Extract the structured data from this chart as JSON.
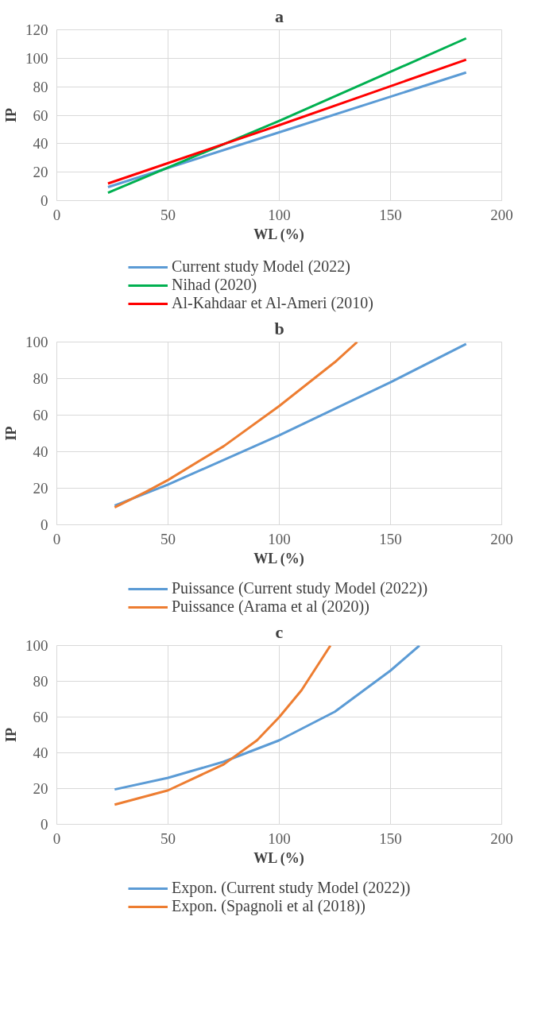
{
  "chart_data": [
    {
      "type": "line",
      "title": "a",
      "xlabel": "WL (%)",
      "ylabel": "IP",
      "xlim": [
        0,
        200
      ],
      "xticks": [
        0,
        50,
        100,
        150,
        200
      ],
      "ylim": [
        0,
        120
      ],
      "yticks": [
        0,
        20,
        40,
        60,
        80,
        100,
        120
      ],
      "grid": true,
      "legend": "bottom",
      "line_style": "solid",
      "series": [
        {
          "name": "Current study Model (2022)",
          "color": "#5b9bd5",
          "x": [
            23,
            100,
            184
          ],
          "values": [
            9.5,
            48,
            90
          ]
        },
        {
          "name": "Nihad (2020)",
          "color": "#00b050",
          "x": [
            23,
            100,
            184
          ],
          "values": [
            5.5,
            56,
            114
          ]
        },
        {
          "name": "Al-Kahdaar et Al-Ameri (2010)",
          "color": "#ff0000",
          "x": [
            23,
            100,
            184
          ],
          "values": [
            12,
            53,
            99
          ]
        }
      ]
    },
    {
      "type": "line",
      "title": "b",
      "xlabel": "WL (%)",
      "ylabel": "IP",
      "xlim": [
        0,
        200
      ],
      "xticks": [
        0,
        50,
        100,
        150,
        200
      ],
      "ylim": [
        0,
        100
      ],
      "yticks": [
        0,
        20,
        40,
        60,
        80,
        100
      ],
      "grid": true,
      "legend": "bottom",
      "line_style": "solid",
      "series": [
        {
          "name": "Puissance (Current study Model (2022))",
          "color": "#5b9bd5",
          "x": [
            26,
            50,
            100,
            150,
            184
          ],
          "values": [
            10.5,
            22,
            49,
            78,
            99
          ]
        },
        {
          "name": "Puissance (Arama et al (2020))",
          "color": "#ed7d31",
          "x": [
            26,
            40,
            50,
            75,
            100,
            125,
            135
          ],
          "values": [
            9.5,
            18,
            24.5,
            43,
            65,
            89,
            100
          ]
        }
      ]
    },
    {
      "type": "line",
      "title": "c",
      "xlabel": "WL (%)",
      "ylabel": "IP",
      "xlim": [
        0,
        200
      ],
      "xticks": [
        0,
        50,
        100,
        150,
        200
      ],
      "ylim": [
        0,
        100
      ],
      "yticks": [
        0,
        20,
        40,
        60,
        80,
        100
      ],
      "grid": true,
      "legend": "bottom",
      "line_style": "solid",
      "series": [
        {
          "name": "Expon. (Current study Model (2022))",
          "color": "#5b9bd5",
          "x": [
            26,
            50,
            75,
            100,
            125,
            150,
            163
          ],
          "values": [
            19.5,
            26,
            35,
            47,
            63,
            86,
            100
          ]
        },
        {
          "name": "Expon. (Spagnoli et al (2018))",
          "color": "#ed7d31",
          "x": [
            26,
            50,
            75,
            90,
            100,
            110,
            123
          ],
          "values": [
            11,
            19,
            33.5,
            47,
            60,
            75,
            100
          ]
        }
      ]
    }
  ]
}
